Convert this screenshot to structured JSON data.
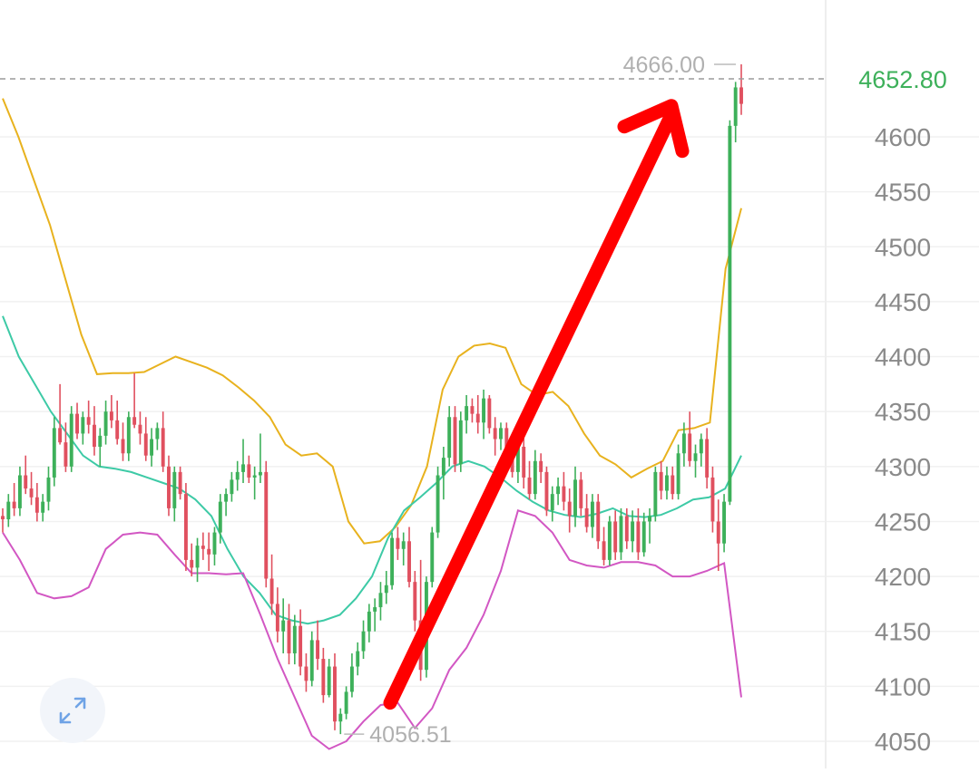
{
  "chart_data": {
    "type": "candlestick",
    "title": "",
    "ylim": [
      4040,
      4700
    ],
    "y_ticks": [
      4600,
      4550,
      4500,
      4450,
      4400,
      4350,
      4300,
      4250,
      4200,
      4150,
      4100,
      4050
    ],
    "y_tick_labels": [
      "4600",
      "4550",
      "4500",
      "4450",
      "4400",
      "4350",
      "4300",
      "4250",
      "4200",
      "4150",
      "4100",
      "4050"
    ],
    "current_price": "4652.80",
    "current_price_value": 4652.8,
    "high_marker": {
      "label": "4666.00",
      "value": 4666.0
    },
    "low_marker": {
      "label": "4056.51",
      "value": 4056.51
    },
    "grid": true,
    "up_color": "#3db05a",
    "down_color": "#e0505f",
    "band_colors": {
      "upper": "#e8b21e",
      "middle": "#3dcaa6",
      "lower": "#d257c3"
    },
    "annotation": {
      "type": "arrow",
      "color": "#ff0000",
      "from_value": 4085,
      "to_value": 4620,
      "direction": "up"
    },
    "candles": [
      [
        4255,
        4262,
        4240,
        4252
      ],
      [
        4252,
        4275,
        4245,
        4268
      ],
      [
        4268,
        4285,
        4255,
        4262
      ],
      [
        4262,
        4300,
        4255,
        4292
      ],
      [
        4292,
        4310,
        4275,
        4280
      ],
      [
        4280,
        4295,
        4265,
        4272
      ],
      [
        4272,
        4285,
        4250,
        4258
      ],
      [
        4258,
        4275,
        4250,
        4268
      ],
      [
        4268,
        4300,
        4260,
        4290
      ],
      [
        4290,
        4345,
        4282,
        4335
      ],
      [
        4335,
        4375,
        4320,
        4322
      ],
      [
        4322,
        4340,
        4295,
        4300
      ],
      [
        4300,
        4355,
        4295,
        4348
      ],
      [
        4348,
        4358,
        4325,
        4330
      ],
      [
        4330,
        4350,
        4320,
        4345
      ],
      [
        4345,
        4360,
        4330,
        4338
      ],
      [
        4338,
        4355,
        4310,
        4318
      ],
      [
        4318,
        4335,
        4300,
        4328
      ],
      [
        4328,
        4360,
        4320,
        4350
      ],
      [
        4350,
        4365,
        4335,
        4342
      ],
      [
        4342,
        4360,
        4320,
        4325
      ],
      [
        4325,
        4340,
        4305,
        4312
      ],
      [
        4312,
        4350,
        4305,
        4345
      ],
      [
        4345,
        4385,
        4335,
        4338
      ],
      [
        4338,
        4350,
        4320,
        4330
      ],
      [
        4330,
        4345,
        4305,
        4310
      ],
      [
        4310,
        4335,
        4300,
        4325
      ],
      [
        4325,
        4340,
        4315,
        4335
      ],
      [
        4335,
        4350,
        4295,
        4300
      ],
      [
        4300,
        4310,
        4255,
        4262
      ],
      [
        4262,
        4300,
        4250,
        4295
      ],
      [
        4295,
        4300,
        4270,
        4275
      ],
      [
        4275,
        4285,
        4205,
        4215
      ],
      [
        4215,
        4230,
        4200,
        4208
      ],
      [
        4208,
        4235,
        4195,
        4228
      ],
      [
        4228,
        4240,
        4215,
        4225
      ],
      [
        4225,
        4240,
        4205,
        4220
      ],
      [
        4220,
        4245,
        4210,
        4240
      ],
      [
        4240,
        4275,
        4230,
        4268
      ],
      [
        4268,
        4280,
        4255,
        4275
      ],
      [
        4275,
        4295,
        4268,
        4288
      ],
      [
        4288,
        4305,
        4278,
        4295
      ],
      [
        4295,
        4325,
        4285,
        4302
      ],
      [
        4302,
        4310,
        4285,
        4290
      ],
      [
        4290,
        4300,
        4270,
        4292
      ],
      [
        4292,
        4330,
        4285,
        4295
      ],
      [
        4295,
        4305,
        4190,
        4198
      ],
      [
        4198,
        4220,
        4165,
        4175
      ],
      [
        4175,
        4190,
        4140,
        4150
      ],
      [
        4150,
        4180,
        4130,
        4160
      ],
      [
        4160,
        4175,
        4120,
        4130
      ],
      [
        4130,
        4165,
        4120,
        4155
      ],
      [
        4155,
        4170,
        4110,
        4118
      ],
      [
        4118,
        4130,
        4095,
        4105
      ],
      [
        4105,
        4150,
        4100,
        4142
      ],
      [
        4142,
        4160,
        4115,
        4125
      ],
      [
        4125,
        4135,
        4085,
        4092
      ],
      [
        4092,
        4125,
        4090,
        4118
      ],
      [
        4118,
        4130,
        4060,
        4068
      ],
      [
        4068,
        4080,
        4056.51,
        4075
      ],
      [
        4075,
        4100,
        4070,
        4095
      ],
      [
        4095,
        4130,
        4090,
        4118
      ],
      [
        4118,
        4140,
        4110,
        4132
      ],
      [
        4132,
        4160,
        4125,
        4150
      ],
      [
        4150,
        4175,
        4140,
        4168
      ],
      [
        4168,
        4180,
        4150,
        4172
      ],
      [
        4172,
        4195,
        4160,
        4185
      ],
      [
        4185,
        4205,
        4175,
        4192
      ],
      [
        4192,
        4240,
        4188,
        4235
      ],
      [
        4235,
        4245,
        4215,
        4225
      ],
      [
        4225,
        4240,
        4210,
        4232
      ],
      [
        4232,
        4245,
        4190,
        4195
      ],
      [
        4195,
        4205,
        4150,
        4160
      ],
      [
        4160,
        4215,
        4105,
        4115
      ],
      [
        4115,
        4200,
        4108,
        4195
      ],
      [
        4195,
        4245,
        4190,
        4240
      ],
      [
        4240,
        4300,
        4235,
        4292
      ],
      [
        4292,
        4318,
        4270,
        4308
      ],
      [
        4308,
        4355,
        4300,
        4345
      ],
      [
        4345,
        4355,
        4295,
        4302
      ],
      [
        4302,
        4350,
        4295,
        4342
      ],
      [
        4342,
        4365,
        4330,
        4355
      ],
      [
        4355,
        4362,
        4340,
        4348
      ],
      [
        4348,
        4365,
        4330,
        4340
      ],
      [
        4340,
        4370,
        4325,
        4362
      ],
      [
        4362,
        4365,
        4330,
        4335
      ],
      [
        4335,
        4345,
        4310,
        4325
      ],
      [
        4325,
        4340,
        4315,
        4335
      ],
      [
        4335,
        4340,
        4310,
        4315
      ],
      [
        4315,
        4325,
        4290,
        4295
      ],
      [
        4295,
        4325,
        4285,
        4318
      ],
      [
        4318,
        4330,
        4280,
        4290
      ],
      [
        4290,
        4305,
        4270,
        4275
      ],
      [
        4275,
        4315,
        4270,
        4305
      ],
      [
        4305,
        4312,
        4285,
        4295
      ],
      [
        4295,
        4300,
        4255,
        4260
      ],
      [
        4260,
        4282,
        4250,
        4275
      ],
      [
        4275,
        4290,
        4265,
        4282
      ],
      [
        4282,
        4295,
        4260,
        4268
      ],
      [
        4268,
        4280,
        4240,
        4255
      ],
      [
        4255,
        4300,
        4245,
        4288
      ],
      [
        4288,
        4295,
        4255,
        4262
      ],
      [
        4262,
        4275,
        4240,
        4245
      ],
      [
        4245,
        4275,
        4235,
        4268
      ],
      [
        4268,
        4275,
        4225,
        4232
      ],
      [
        4232,
        4245,
        4210,
        4215
      ],
      [
        4215,
        4255,
        4210,
        4250
      ],
      [
        4250,
        4260,
        4215,
        4222
      ],
      [
        4222,
        4262,
        4215,
        4255
      ],
      [
        4255,
        4262,
        4225,
        4232
      ],
      [
        4232,
        4260,
        4222,
        4250
      ],
      [
        4250,
        4262,
        4215,
        4222
      ],
      [
        4222,
        4258,
        4218,
        4250
      ],
      [
        4250,
        4262,
        4230,
        4255
      ],
      [
        4255,
        4300,
        4250,
        4295
      ],
      [
        4295,
        4305,
        4270,
        4278
      ],
      [
        4278,
        4300,
        4270,
        4292
      ],
      [
        4292,
        4300,
        4270,
        4275
      ],
      [
        4275,
        4320,
        4270,
        4312
      ],
      [
        4312,
        4340,
        4300,
        4330
      ],
      [
        4330,
        4350,
        4300,
        4305
      ],
      [
        4305,
        4320,
        4290,
        4312
      ],
      [
        4312,
        4330,
        4300,
        4325
      ],
      [
        4325,
        4335,
        4280,
        4290
      ],
      [
        4290,
        4300,
        4240,
        4250
      ],
      [
        4250,
        4270,
        4205,
        4230
      ],
      [
        4230,
        4275,
        4222,
        4268
      ],
      [
        4268,
        4615,
        4265,
        4610
      ],
      [
        4610,
        4650,
        4595,
        4645
      ],
      [
        4645,
        4666,
        4620,
        4630
      ]
    ],
    "series": [
      {
        "role": "upper",
        "values": [
          4635,
          4600,
          4560,
          4520,
          4470,
          4420,
          4384,
          4385,
          4385,
          4386,
          4393,
          4400,
          4395,
          4390,
          4383,
          4372,
          4360,
          4345,
          4320,
          4310,
          4312,
          4300,
          4250,
          4230,
          4232,
          4245,
          4265,
          4300,
          4370,
          4400,
          4410,
          4412,
          4408,
          4375,
          4365,
          4368,
          4355,
          4330,
          4310,
          4302,
          4290,
          4298,
          4305,
          4333,
          4335,
          4340,
          4480,
          4535
        ]
      },
      {
        "role": "middle",
        "values": [
          4437,
          4400,
          4375,
          4350,
          4330,
          4310,
          4300,
          4298,
          4295,
          4290,
          4285,
          4280,
          4270,
          4255,
          4225,
          4200,
          4185,
          4165,
          4160,
          4157,
          4160,
          4165,
          4180,
          4200,
          4235,
          4260,
          4272,
          4285,
          4300,
          4305,
          4300,
          4290,
          4278,
          4268,
          4260,
          4256,
          4254,
          4257,
          4262,
          4255,
          4254,
          4256,
          4262,
          4270,
          4272,
          4280,
          4310
        ]
      },
      {
        "role": "lower",
        "values": [
          4240,
          4215,
          4185,
          4180,
          4182,
          4190,
          4225,
          4238,
          4240,
          4238,
          4220,
          4203,
          4203,
          4202,
          4203,
          4165,
          4125,
          4090,
          4055,
          4043,
          4050,
          4068,
          4083,
          4085,
          4062,
          4080,
          4115,
          4135,
          4165,
          4205,
          4260,
          4255,
          4240,
          4215,
          4210,
          4208,
          4213,
          4213,
          4210,
          4200,
          4200,
          4205,
          4212,
          4090
        ]
      }
    ]
  },
  "ui": {
    "expand_icon": "expand-arrows-icon",
    "expand_label": "Expand chart"
  }
}
